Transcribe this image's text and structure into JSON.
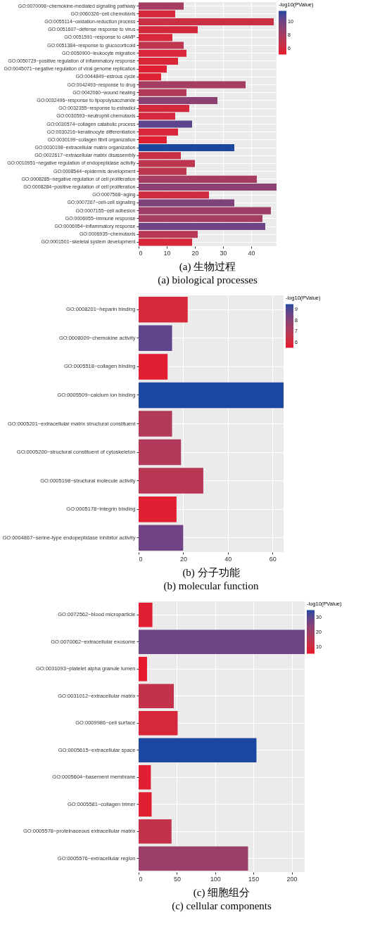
{
  "chart_data": [
    {
      "type": "bar",
      "orientation": "horizontal",
      "title": "(a) 生物过程",
      "subtitle": "(a) biological processes",
      "categories": [
        "GO:0070098~chemokine-mediated signaling pathway",
        "GO:0060326~cell chemotaxis",
        "GO:0055114~oxidation-reduction process",
        "GO:0051607~defense response to virus",
        "GO:0051591~response to cAMP",
        "GO:0051384~response to glucocorticoid",
        "GO:0050900~leukocyte migration",
        "GO:0050729~positive regulation of inflammatory response",
        "GO:0045071~negative regulation of viral genome replication",
        "GO:0044849~estrous cycle",
        "GO:0042493~response to drug",
        "GO:0042060~wound healing",
        "GO:0032496~response to lipopolysaccharide",
        "GO:0032355~response to estradiol",
        "GO:0030593~neutrophil chemotaxis",
        "GO:0030574~collagen catabolic process",
        "GO:0030216~keratinocyte differentiation",
        "GO:0030199~collagen fibril organization",
        "GO:0030198~extracellular matrix organization",
        "GO:0022617~extracellular matrix disassembly",
        "GO:0010951~negative regulation of endopeptidase activity",
        "GO:0008544~epidermis development",
        "GO:0008285~negative regulation of cell proliferation",
        "GO:0008284~positive regulation of cell proliferation",
        "GO:0007568~aging",
        "GO:0007267~cell-cell signaling",
        "GO:0007155~cell adhesion",
        "GO:0006955~immune response",
        "GO:0006954~inflammatory response",
        "GO:0006935~chemotaxis",
        "GO:0001501~skeletal system development"
      ],
      "values": [
        16,
        13,
        48,
        21,
        12,
        16,
        17,
        14,
        10,
        8,
        38,
        17,
        28,
        18,
        13,
        19,
        14,
        10,
        34,
        15,
        20,
        17,
        42,
        49,
        25,
        34,
        47,
        44,
        45,
        21,
        19
      ],
      "cvalues": [
        8,
        6,
        6.5,
        6,
        5.8,
        7,
        5.8,
        5.8,
        5.5,
        5.5,
        8,
        7.5,
        9,
        6,
        6,
        10.5,
        5.8,
        5.5,
        11.6,
        6.5,
        7,
        7,
        8,
        9,
        6.2,
        9.5,
        8.3,
        8,
        10,
        7.3,
        5.8
      ],
      "clabel": "-log10(PValue)",
      "clim": [
        5.1,
        11.6
      ],
      "cticks": [
        6,
        8,
        10
      ],
      "xlim": [
        0,
        49
      ],
      "xticks": [
        0,
        10,
        20,
        30,
        40
      ],
      "grid": true
    },
    {
      "type": "bar",
      "orientation": "horizontal",
      "title": "(b) 分子功能",
      "subtitle": "(b) molecular function",
      "categories": [
        "GO:0008201~heparin binding",
        "GO:0008009~chemokine activity",
        "GO:0005518~collagen binding",
        "GO:0005509~calcium ion binding",
        "GO:0005201~extracellular matrix structural constituent",
        "GO:0005200~structural constituent of cytoskeleton",
        "GO:0005198~structural molecule activity",
        "GO:0005178~integrin binding",
        "GO:0004867~serine-type endopeptidase inhibitor activity"
      ],
      "values": [
        22,
        15,
        13,
        65,
        15,
        19,
        29,
        17,
        20
      ],
      "cvalues": [
        6,
        8.8,
        5.7,
        9.5,
        7,
        7,
        6.8,
        5.7,
        8.5
      ],
      "clabel": "-log10(PValue)",
      "clim": [
        5.5,
        9.5
      ],
      "cticks": [
        6,
        7,
        8,
        9
      ],
      "xlim": [
        0,
        65
      ],
      "xticks": [
        0,
        20,
        40,
        60
      ],
      "grid": true
    },
    {
      "type": "bar",
      "orientation": "horizontal",
      "title": "(c) 细胞组分",
      "subtitle": "(c) cellular components",
      "categories": [
        "GO:0072562~blood microparticle",
        "GO:0070062~extracellular exosome",
        "GO:0031093~platelet alpha granule lumen",
        "GO:0031012~extracellular matrix",
        "GO:0009986~cell surface",
        "GO:0005615~extracellular space",
        "GO:0005604~basement membrane",
        "GO:0005581~collagen trimer",
        "GO:0005578~proteinaceous extracellular matrix",
        "GO:0005576~extracellular region"
      ],
      "values": [
        18,
        217,
        11,
        46,
        51,
        154,
        16,
        17,
        43,
        143
      ],
      "cvalues": [
        7,
        28,
        6,
        13,
        9,
        35,
        7,
        7,
        13,
        21
      ],
      "clabel": "-log10(PValue)",
      "clim": [
        5.5,
        35
      ],
      "cticks": [
        10,
        20,
        30
      ],
      "xlim": [
        0,
        217
      ],
      "xticks": [
        0,
        50,
        100,
        150,
        200
      ],
      "grid": true
    }
  ]
}
